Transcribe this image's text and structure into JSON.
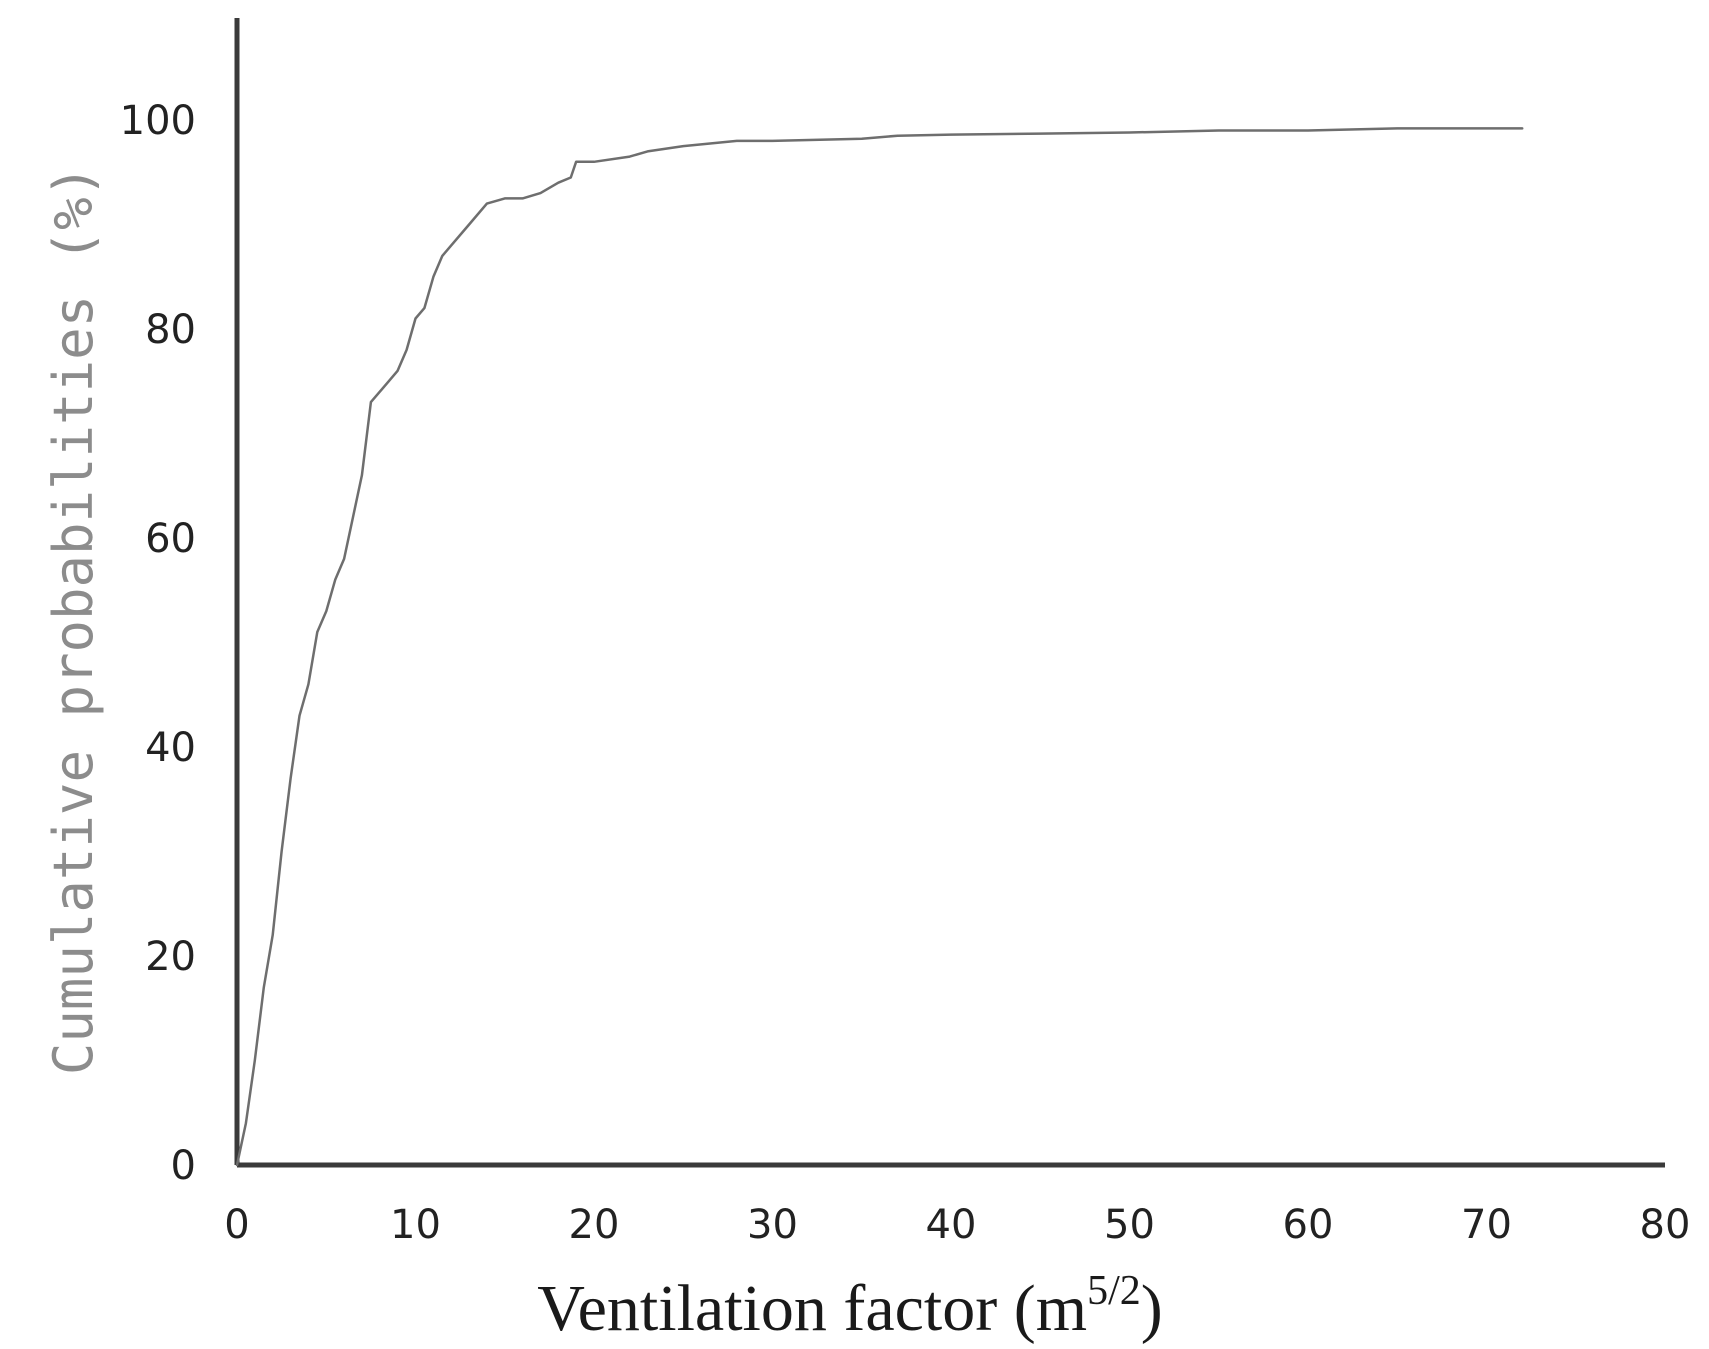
{
  "chart_data": {
    "type": "line",
    "title": "",
    "xlabel": "Ventilation factor (m",
    "xlabel_superscript": "5/2",
    "xlabel_close": ")",
    "ylabel": "Cumulative probabilities (%)",
    "xlim": [
      0,
      80
    ],
    "ylim": [
      0,
      110
    ],
    "xticks": [
      0,
      10,
      20,
      30,
      40,
      50,
      60,
      70,
      80
    ],
    "yticks": [
      0,
      20,
      40,
      60,
      80,
      100
    ],
    "grid": false,
    "legend": "none",
    "axis_color": "#3a3a3a",
    "series": [
      {
        "color": "#6e6e6e",
        "x": [
          0,
          0.5,
          1.0,
          1.5,
          2.0,
          2.5,
          3.0,
          3.5,
          4.0,
          4.5,
          5.0,
          5.5,
          6.0,
          6.5,
          7.0,
          7.5,
          8.0,
          8.5,
          9.0,
          9.5,
          10.0,
          10.5,
          11.0,
          11.5,
          12.0,
          13.0,
          14.0,
          15.0,
          16.0,
          17.0,
          18.0,
          18.7,
          19.0,
          20.0,
          22.0,
          23.0,
          25.0,
          28.0,
          30.0,
          35.0,
          37.0,
          40.0,
          45.0,
          50.0,
          55.0,
          60.0,
          65.0,
          72.0
        ],
        "y": [
          0,
          4,
          10,
          17,
          22,
          30,
          37,
          43,
          46,
          51,
          53,
          56,
          58,
          62,
          66,
          73,
          74,
          75,
          76,
          78,
          81,
          82,
          85,
          87,
          88,
          90,
          92,
          92.5,
          92.5,
          93,
          94,
          94.5,
          96,
          96,
          96.5,
          97,
          97.5,
          98,
          98,
          98.2,
          98.5,
          98.6,
          98.7,
          98.8,
          99,
          99,
          99.2,
          99.2
        ]
      }
    ]
  }
}
